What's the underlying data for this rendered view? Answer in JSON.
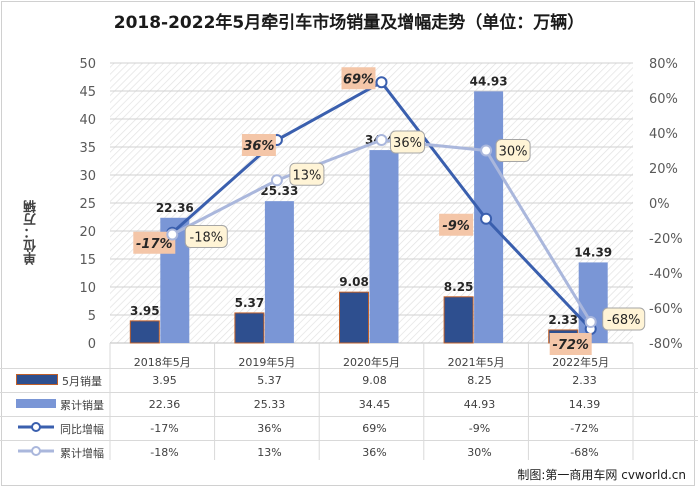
{
  "title": "2018-2022年5月牵引车市场销量及增幅走势（单位：万辆）",
  "source": "制图:第一商用车网 cvworld.cn",
  "chart_data": {
    "type": "bar",
    "categories": [
      "2018年5月",
      "2019年5月",
      "2020年5月",
      "2021年5月",
      "2022年5月"
    ],
    "ylabel": "单位：万辆",
    "ylim": [
      0,
      50
    ],
    "y_ticks": [
      "0",
      "5",
      "10",
      "15",
      "20",
      "25",
      "30",
      "35",
      "40",
      "45",
      "50"
    ],
    "ylim_right": [
      -80,
      80
    ],
    "y_ticks_right": [
      "-80%",
      "-60%",
      "-40%",
      "-20%",
      "0%",
      "20%",
      "40%",
      "60%",
      "80%"
    ],
    "grid": true,
    "legend_position": "table-bottom",
    "series": [
      {
        "name": "5月销量",
        "type": "bar",
        "axis": "left",
        "color": "#2e4f8f",
        "values": [
          3.95,
          5.37,
          9.08,
          8.25,
          2.33
        ],
        "labels": [
          "3.95",
          "5.37",
          "9.08",
          "8.25",
          "2.33"
        ]
      },
      {
        "name": "累计销量",
        "type": "bar",
        "axis": "left",
        "color": "#7a96d6",
        "values": [
          22.36,
          25.33,
          34.45,
          44.93,
          14.39
        ],
        "labels": [
          "22.36",
          "25.33",
          "34.45",
          "44.93",
          "14.39"
        ]
      },
      {
        "name": "同比增幅",
        "type": "line",
        "axis": "right",
        "color": "#3a5fae",
        "values": [
          -17,
          36,
          69,
          -9,
          -72
        ],
        "labels": [
          "-17%",
          "36%",
          "69%",
          "-9%",
          "-72%"
        ]
      },
      {
        "name": "累计增幅",
        "type": "line",
        "axis": "right",
        "color": "#aab7dc",
        "values": [
          -18,
          13,
          36,
          30,
          -68
        ],
        "labels": [
          "-18%",
          "13%",
          "36%",
          "30%",
          "-68%"
        ]
      }
    ]
  },
  "table": {
    "rows": [
      {
        "legend": "5月销量",
        "icon": "bar-dark",
        "cells": [
          "3.95",
          "5.37",
          "9.08",
          "8.25",
          "2.33"
        ]
      },
      {
        "legend": "累计销量",
        "icon": "bar-light",
        "cells": [
          "22.36",
          "25.33",
          "34.45",
          "44.93",
          "14.39"
        ]
      },
      {
        "legend": "同比增幅",
        "icon": "line-dark",
        "cells": [
          "-17%",
          "36%",
          "69%",
          "-9%",
          "-72%"
        ]
      },
      {
        "legend": "累计增幅",
        "icon": "line-light",
        "cells": [
          "-18%",
          "13%",
          "36%",
          "30%",
          "-68%"
        ]
      }
    ]
  }
}
